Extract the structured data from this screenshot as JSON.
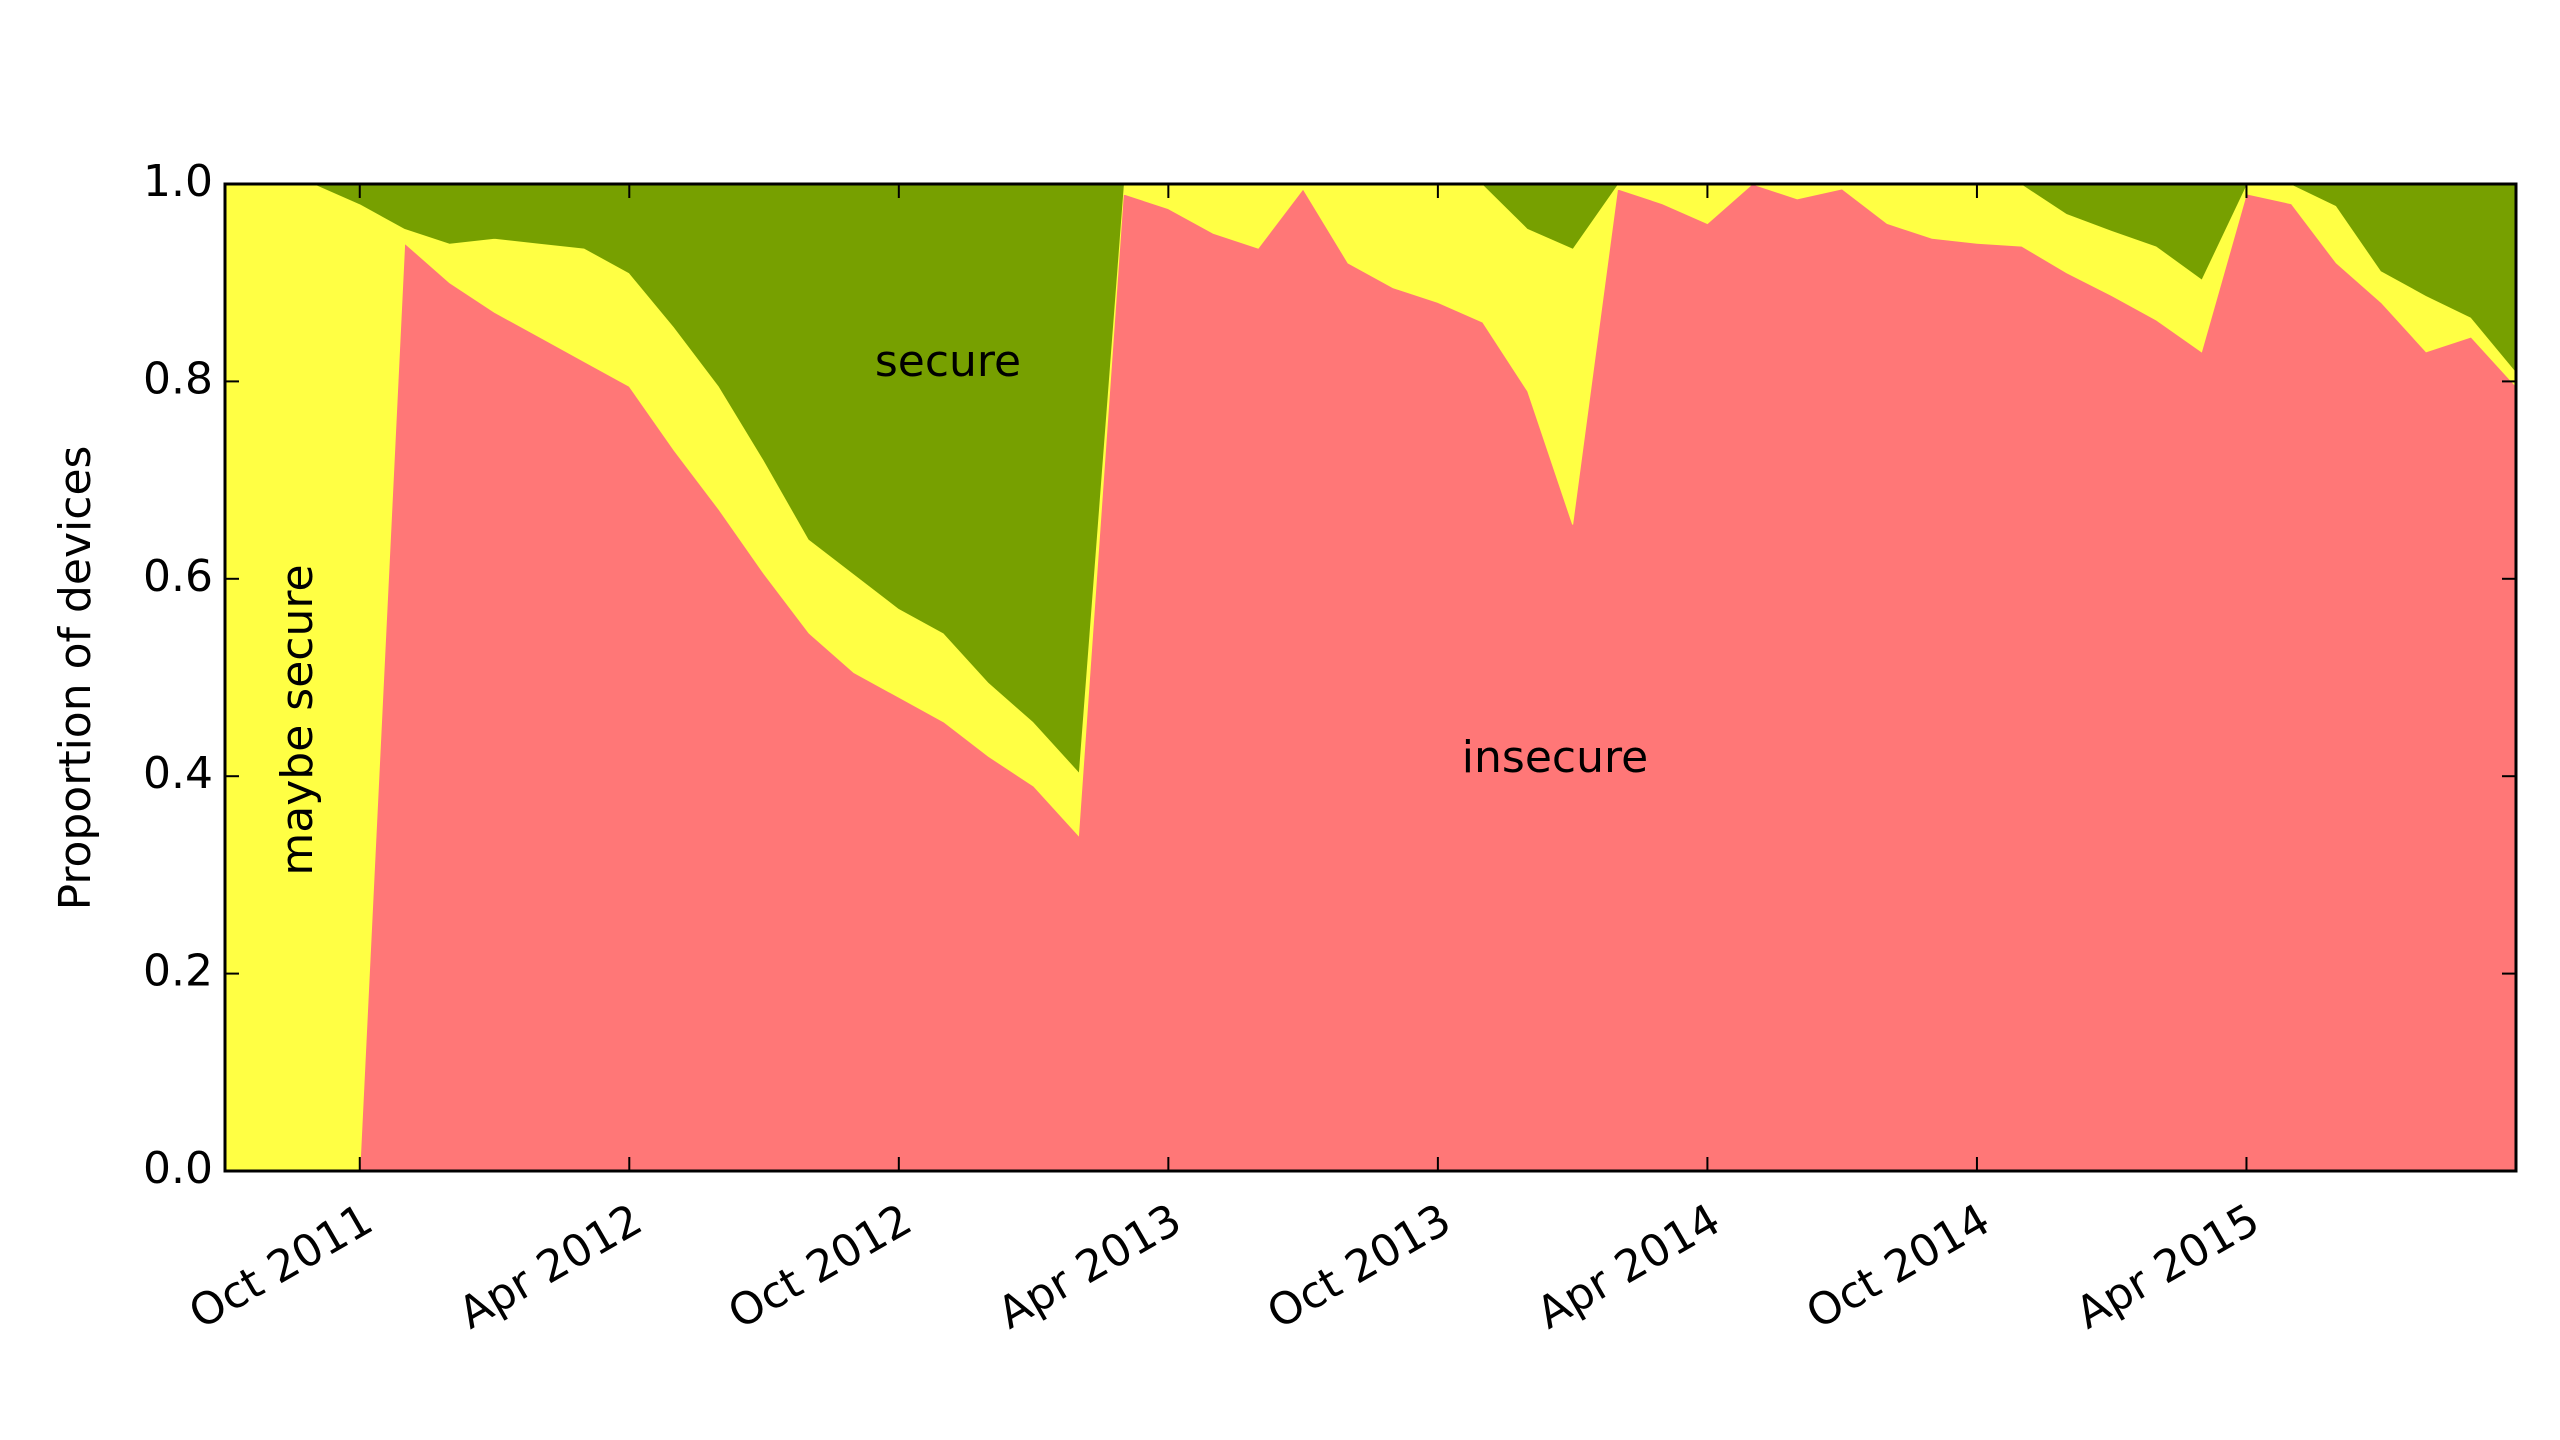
{
  "chart_data": {
    "type": "stacked_area",
    "y_label": "Proportion of devices",
    "x": [
      "Jul 2011",
      "Aug 2011",
      "Sep 2011",
      "Oct 2011",
      "Nov 2011",
      "Dec 2011",
      "Jan 2012",
      "Feb 2012",
      "Mar 2012",
      "Apr 2012",
      "May 2012",
      "Jun 2012",
      "Jul 2012",
      "Aug 2012",
      "Sep 2012",
      "Oct 2012",
      "Nov 2012",
      "Dec 2012",
      "Jan 2013",
      "Feb 2013",
      "Mar 2013",
      "Apr 2013",
      "May 2013",
      "Jun 2013",
      "Jul 2013",
      "Aug 2013",
      "Sep 2013",
      "Oct 2013",
      "Nov 2013",
      "Dec 2013",
      "Jan 2014",
      "Feb 2014",
      "Mar 2014",
      "Apr 2014",
      "May 2014",
      "Jun 2014",
      "Jul 2014",
      "Aug 2014",
      "Sep 2014",
      "Oct 2014",
      "Nov 2014",
      "Dec 2014",
      "Jan 2015",
      "Feb 2015",
      "Mar 2015",
      "Apr 2015",
      "May 2015",
      "Jun 2015",
      "Jul 2015",
      "Aug 2015",
      "Sep 2015",
      "Oct 2015"
    ],
    "series": [
      {
        "name": "insecure",
        "color": "#ff7777",
        "values": [
          0,
          0,
          0,
          0,
          0.94,
          0.9,
          0.87,
          0.845,
          0.82,
          0.795,
          0.73,
          0.67,
          0.605,
          0.545,
          0.505,
          0.48,
          0.455,
          0.42,
          0.39,
          0.34,
          0.99,
          0.975,
          0.95,
          0.935,
          0.995,
          0.92,
          0.895,
          0.88,
          0.86,
          0.79,
          0.655,
          0.995,
          0.98,
          0.96,
          1,
          0.985,
          0.995,
          0.96,
          0.945,
          0.94,
          0.937,
          0.91,
          0.887,
          0.862,
          0.83,
          0.99,
          0.98,
          0.92,
          0.88,
          0.83,
          0.845,
          0.795
        ]
      },
      {
        "name": "maybe secure",
        "color": "#ffff44",
        "values": [
          1,
          1,
          1,
          0.98,
          0.015,
          0.04,
          0.075,
          0.095,
          0.115,
          0.115,
          0.125,
          0.125,
          0.115,
          0.095,
          0.1,
          0.09,
          0.09,
          0.075,
          0.065,
          0.065,
          0.01,
          0.025,
          0.05,
          0.065,
          0.005,
          0.08,
          0.105,
          0.12,
          0.14,
          0.165,
          0.28,
          0.005,
          0.02,
          0.04,
          0,
          0.015,
          0.005,
          0.04,
          0.055,
          0.06,
          0.063,
          0.06,
          0.066,
          0.075,
          0.074,
          0.01,
          0.02,
          0.058,
          0.032,
          0.057,
          0.02,
          0.015
        ]
      },
      {
        "name": "secure",
        "color": "#77a000",
        "values": [
          0,
          0,
          0,
          0.02,
          0.045,
          0.06,
          0.055,
          0.06,
          0.065,
          0.09,
          0.145,
          0.205,
          0.28,
          0.36,
          0.395,
          0.43,
          0.455,
          0.505,
          0.545,
          0.595,
          0,
          0,
          0,
          0,
          0,
          0,
          0,
          0,
          0,
          0.045,
          0.065,
          0,
          0,
          0,
          0,
          0,
          0,
          0,
          0,
          0,
          0,
          0.03,
          0.047,
          0.063,
          0.096,
          0,
          0,
          0.022,
          0.088,
          0.113,
          0.135,
          0.19
        ]
      }
    ],
    "annotations": [
      "maybe secure",
      "secure",
      "insecure"
    ],
    "xlim": [
      "Jul 2011",
      "Oct 2015"
    ],
    "xticks": [
      "Oct 2011",
      "Apr 2012",
      "Oct 2012",
      "Apr 2013",
      "Oct 2013",
      "Apr 2014",
      "Oct 2014",
      "Apr 2015"
    ],
    "ylim": [
      0,
      1
    ],
    "yticks": [
      {
        "value": 0,
        "label": "0.0"
      },
      0.2,
      0.4,
      0.6,
      0.8,
      {
        "value": 1,
        "label": "1.0"
      }
    ]
  }
}
